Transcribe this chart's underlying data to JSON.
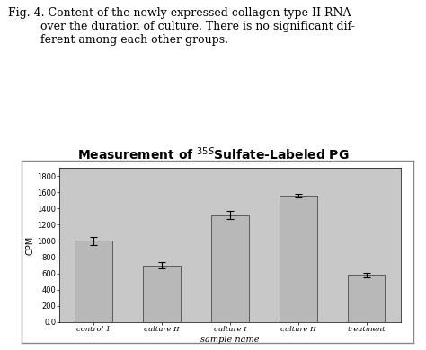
{
  "title": "Measurement of $^{35S}$Sulfate-Labeled PG",
  "xlabel": "sample name",
  "ylabel": "CPM",
  "caption": "Fig. 4. Content of the newly expressed collagen type II RNA\n       over the duration of culture. There is no significant dif-\n       ferent among each other groups.",
  "categories": [
    "control 1",
    "culture II",
    "culture I",
    "culture II",
    "treatment"
  ],
  "values": [
    1000,
    700,
    1320,
    1560,
    580
  ],
  "errors": [
    45,
    40,
    50,
    25,
    30
  ],
  "bar_color": "#b8b8b8",
  "bar_edge_color": "#333333",
  "ytick_labels": [
    "0.0",
    "200",
    "400",
    "600",
    "800",
    "1000",
    "1200",
    "1400",
    "1600",
    "1800"
  ],
  "ytick_values": [
    0,
    200,
    400,
    600,
    800,
    1000,
    1200,
    1400,
    1600,
    1800
  ],
  "ylim": [
    0,
    1900
  ],
  "outer_bg": "#ffffff",
  "plot_bg_color": "#c8c8c8",
  "chart_outer_bg": "#ffffff",
  "title_fontsize": 10,
  "axis_label_fontsize": 7,
  "tick_fontsize": 6,
  "caption_fontsize": 9
}
